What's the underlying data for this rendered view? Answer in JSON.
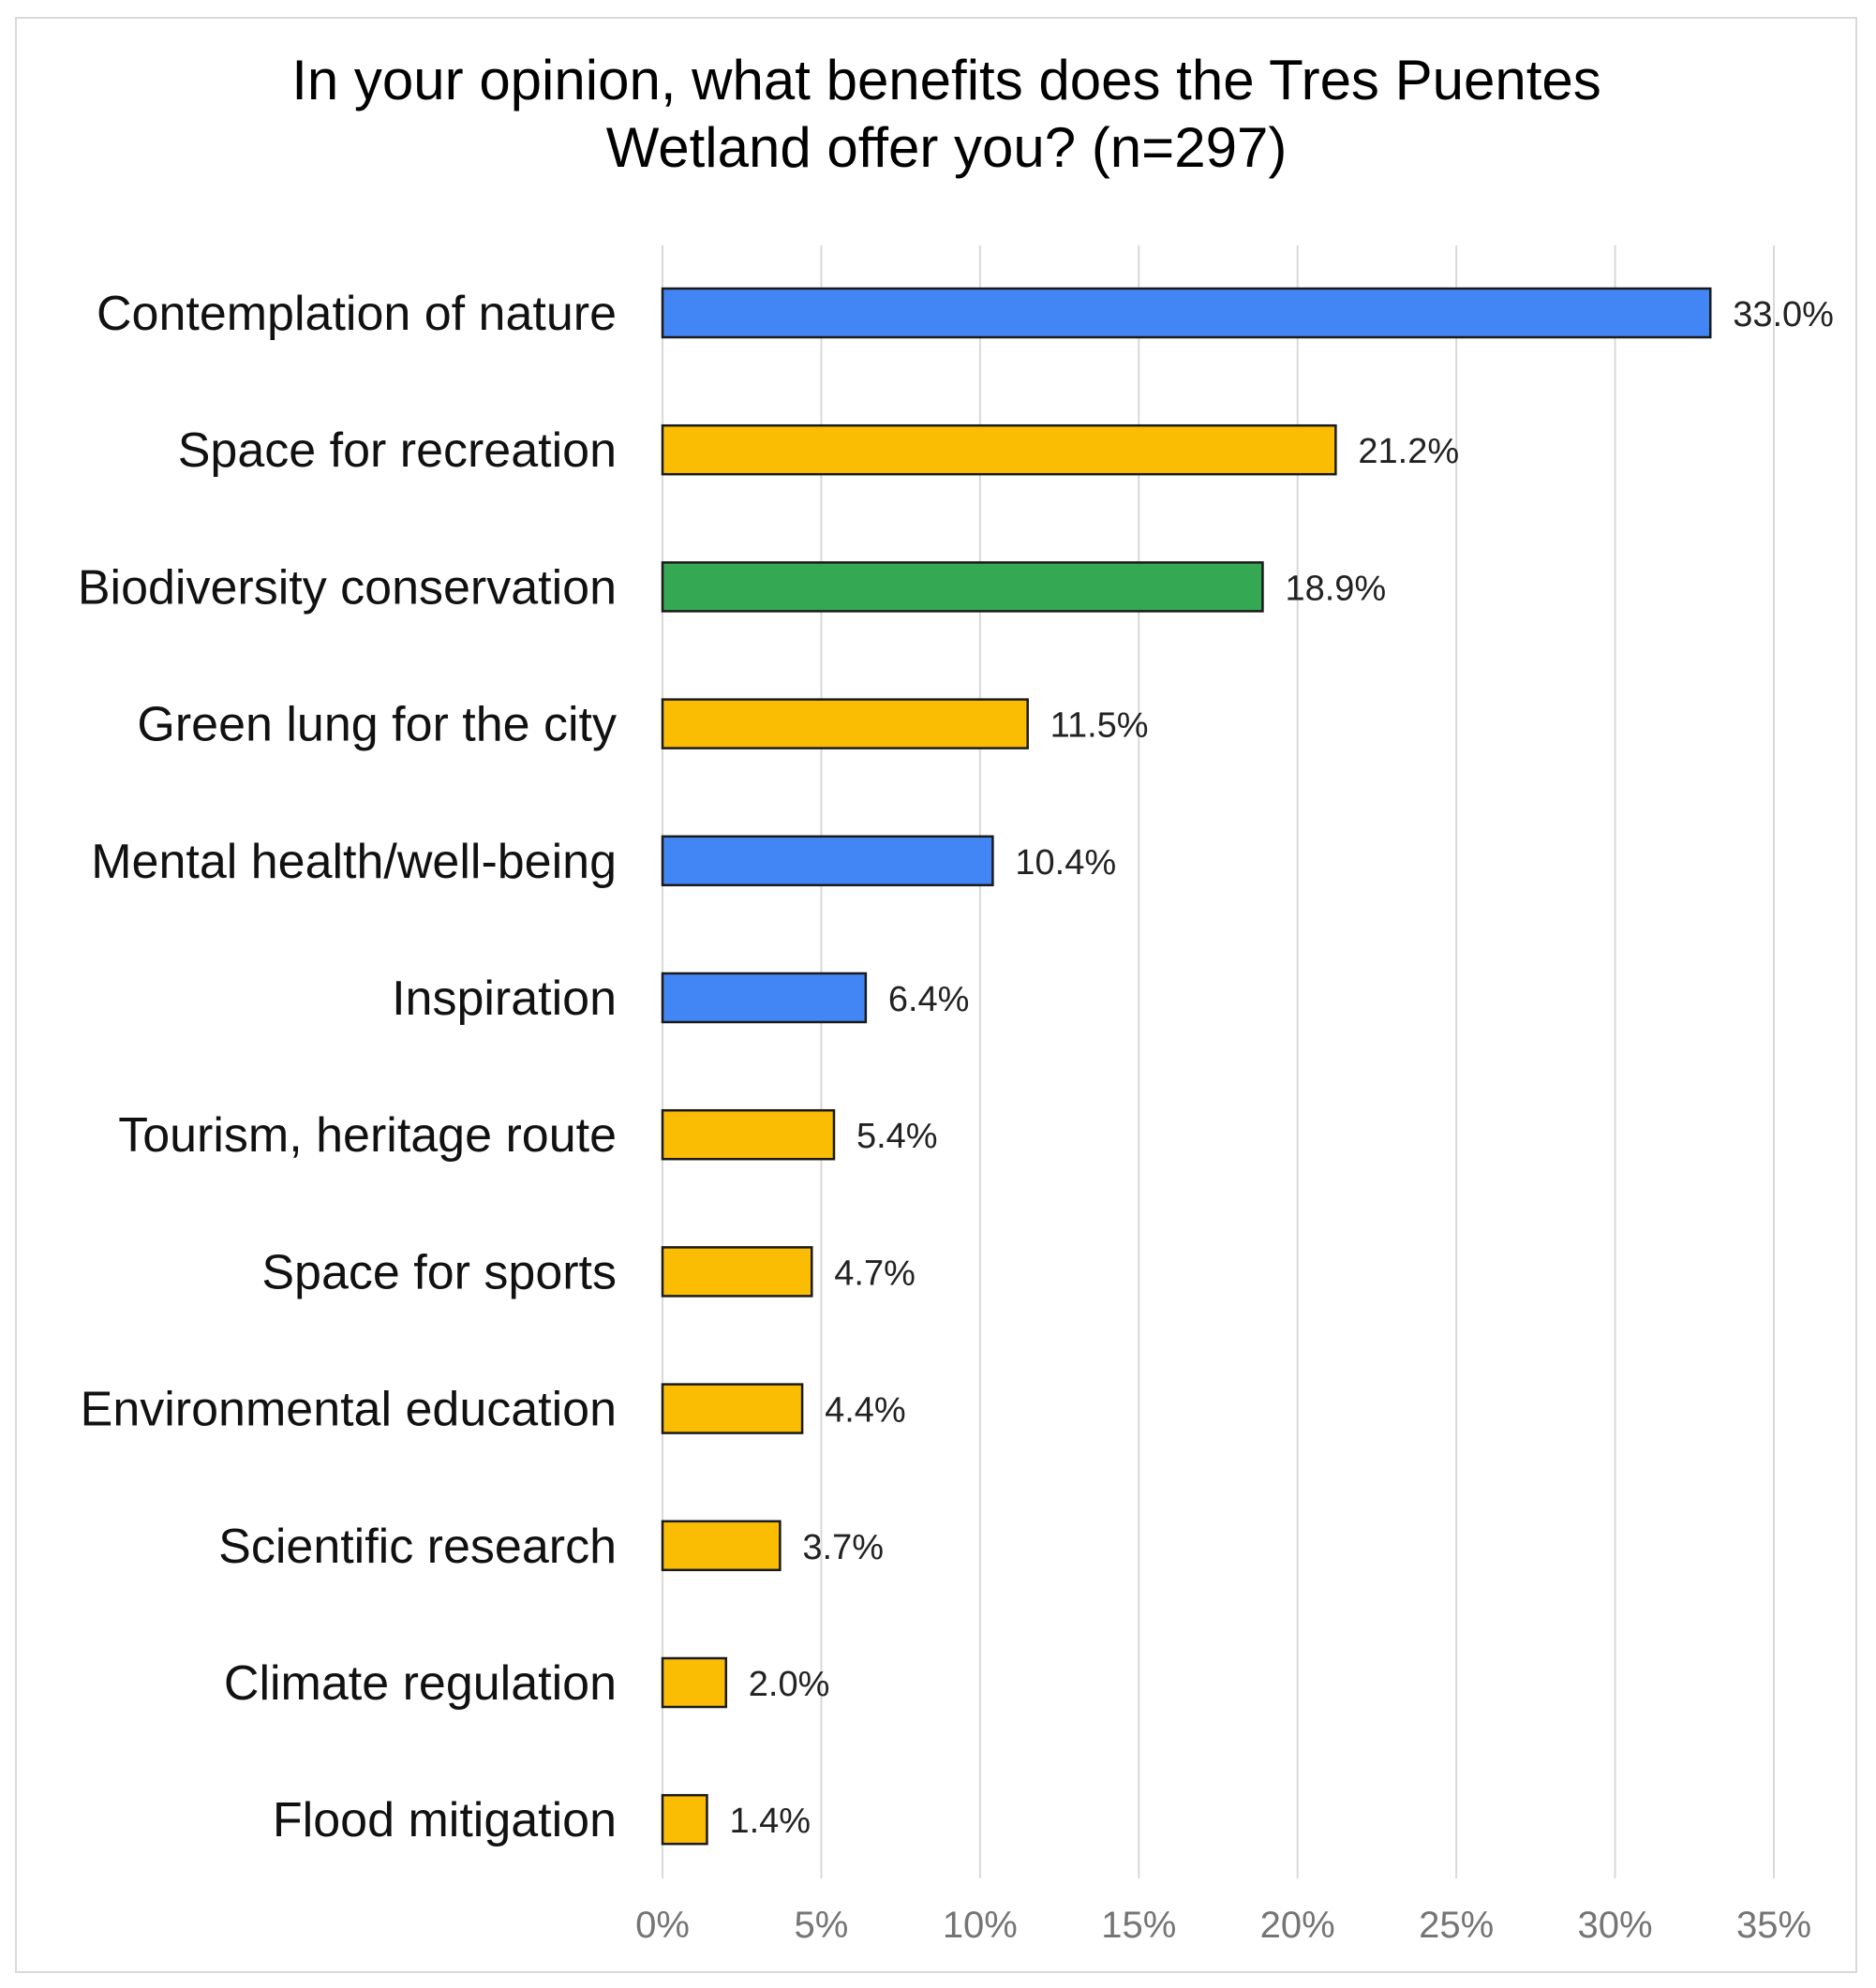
{
  "chart_data": {
    "type": "bar",
    "orientation": "horizontal",
    "title": "In your opinion, what benefits does the Tres Puentes Wetland offer you? (n=297)",
    "title_lines": [
      "In your opinion, what benefits does the Tres Puentes",
      "Wetland offer you? (n=297)"
    ],
    "categories": [
      "Contemplation of nature",
      "Space for recreation",
      "Biodiversity conservation",
      "Green lung for the city",
      "Mental health/well-being",
      "Inspiration",
      "Tourism, heritage route",
      "Space for sports",
      "Environmental education",
      "Scientific research",
      "Climate regulation",
      "Flood mitigation"
    ],
    "values": [
      33.0,
      21.2,
      18.9,
      11.5,
      10.4,
      6.4,
      5.4,
      4.7,
      4.4,
      3.7,
      2.0,
      1.4
    ],
    "data_labels": [
      "33.0%",
      "21.2%",
      "18.9%",
      "11.5%",
      "10.4%",
      "6.4%",
      "5.4%",
      "4.7%",
      "4.4%",
      "3.7%",
      "2.0%",
      "1.4%"
    ],
    "bar_colors": [
      "#4285f4",
      "#fbbc04",
      "#34a853",
      "#fbbc04",
      "#4285f4",
      "#4285f4",
      "#fbbc04",
      "#fbbc04",
      "#fbbc04",
      "#fbbc04",
      "#fbbc04",
      "#fbbc04"
    ],
    "xlim": [
      0,
      35
    ],
    "xticks": [
      0,
      5,
      10,
      15,
      20,
      25,
      30,
      35
    ],
    "xtick_labels": [
      "0%",
      "5%",
      "10%",
      "15%",
      "20%",
      "25%",
      "30%",
      "35%"
    ],
    "xlabel": "",
    "ylabel": "",
    "grid": "vertical",
    "legend": "none"
  },
  "colors": {
    "grid": "#d9d9d9",
    "bar_outline": "#1a1a1a",
    "frame": "#d9d9d9"
  }
}
